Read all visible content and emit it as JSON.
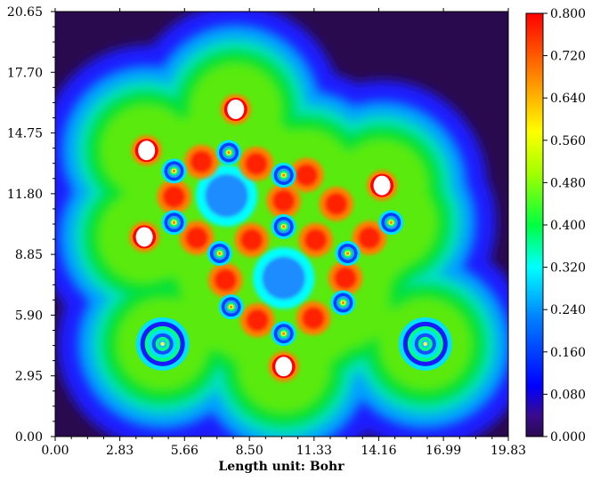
{
  "chart_data": {
    "type": "heatmap",
    "title": "",
    "xlabel": "Length unit: Bohr",
    "ylabel": "",
    "xlim": [
      0.0,
      19.83
    ],
    "ylim": [
      0.0,
      20.65
    ],
    "x_ticks": [
      "0.00",
      "2.83",
      "5.66",
      "8.50",
      "11.33",
      "14.16",
      "16.99",
      "19.83"
    ],
    "x_tick_values": [
      0.0,
      2.83,
      5.66,
      8.5,
      11.33,
      14.16,
      16.99,
      19.83
    ],
    "y_ticks": [
      "0.00",
      "2.95",
      "5.90",
      "8.85",
      "11.80",
      "14.75",
      "17.70",
      "20.65"
    ],
    "y_tick_values": [
      0.0,
      2.95,
      5.9,
      8.85,
      11.8,
      14.75,
      17.7,
      20.65
    ],
    "colorbar": {
      "min": 0.0,
      "max": 0.8,
      "ticks": [
        "0.000",
        "0.080",
        "0.160",
        "0.240",
        "0.320",
        "0.400",
        "0.480",
        "0.560",
        "0.640",
        "0.720",
        "0.800"
      ],
      "tick_values": [
        0.0,
        0.08,
        0.16,
        0.24,
        0.32,
        0.4,
        0.48,
        0.56,
        0.64,
        0.72,
        0.8
      ],
      "colors": [
        "#2a0a4e",
        "#0000ff",
        "#00ffff",
        "#00ff00",
        "#ffff00",
        "#ff8000",
        "#ff0000"
      ]
    },
    "atoms": {
      "carbon": [
        {
          "x": 5.2,
          "y": 12.9
        },
        {
          "x": 5.2,
          "y": 10.4
        },
        {
          "x": 7.6,
          "y": 13.8
        },
        {
          "x": 10.0,
          "y": 12.7
        },
        {
          "x": 10.0,
          "y": 10.2
        },
        {
          "x": 7.2,
          "y": 8.9
        },
        {
          "x": 12.8,
          "y": 8.9
        },
        {
          "x": 7.7,
          "y": 6.3
        },
        {
          "x": 10.0,
          "y": 5.0
        },
        {
          "x": 12.6,
          "y": 6.5
        },
        {
          "x": 14.7,
          "y": 10.4
        }
      ],
      "heavy": [
        {
          "x": 4.7,
          "y": 4.5
        },
        {
          "x": 16.2,
          "y": 4.5
        }
      ],
      "hydrogen": [
        {
          "x": 7.9,
          "y": 15.9
        },
        {
          "x": 4.0,
          "y": 13.9
        },
        {
          "x": 3.9,
          "y": 9.7
        },
        {
          "x": 10.0,
          "y": 3.4
        },
        {
          "x": 14.3,
          "y": 12.2
        }
      ],
      "bonds": [
        {
          "x": 5.2,
          "y": 11.65
        },
        {
          "x": 6.4,
          "y": 13.35
        },
        {
          "x": 8.8,
          "y": 13.25
        },
        {
          "x": 10.0,
          "y": 11.45
        },
        {
          "x": 6.2,
          "y": 9.65
        },
        {
          "x": 8.6,
          "y": 9.55
        },
        {
          "x": 11.4,
          "y": 9.55
        },
        {
          "x": 7.45,
          "y": 7.6
        },
        {
          "x": 12.7,
          "y": 7.7
        },
        {
          "x": 8.85,
          "y": 5.65
        },
        {
          "x": 11.3,
          "y": 5.75
        },
        {
          "x": 13.75,
          "y": 9.65
        },
        {
          "x": 11.0,
          "y": 12.7
        },
        {
          "x": 12.3,
          "y": 11.3
        }
      ],
      "ring_centers": [
        {
          "x": 7.5,
          "y": 11.7
        },
        {
          "x": 10.0,
          "y": 7.7
        }
      ]
    }
  }
}
